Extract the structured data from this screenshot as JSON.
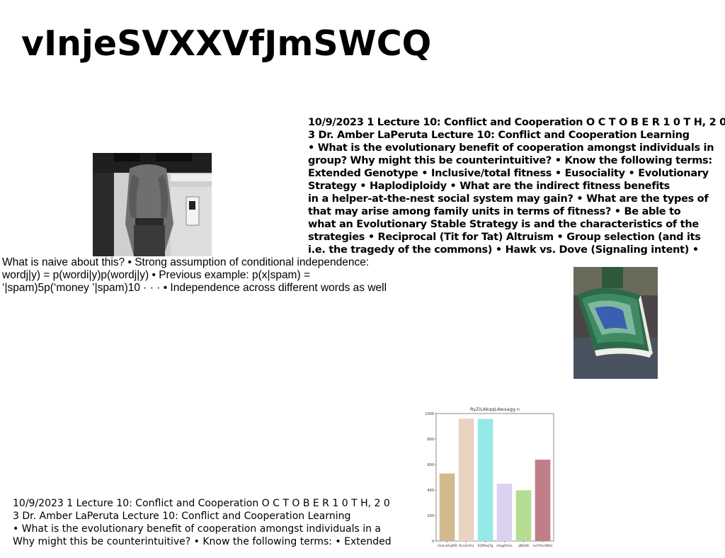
{
  "page": {
    "title": "vInjeSVXXVfJmSWCQ"
  },
  "images": {
    "man": {
      "description_icon": "photo-icon"
    },
    "book": {
      "description_icon": "photo-icon"
    }
  },
  "text_bold": {
    "lines": [
      "10/9/2023 1 Lecture 10: Conflict and Cooperation O C T O B E R 1 0 T H, 2 0",
      "3 Dr. Amber LaPeruta Lecture 10: Conflict and Cooperation Learning",
      "• What is the evolutionary benefit of cooperation amongst individuals in",
      "group? Why might this be counterintuitive? • Know the following terms:",
      "Extended Genotype • Inclusive/total fitness • Eusociality • Evolutionary",
      "Strategy • Haplodiploidy • What are the indirect fitness benefits",
      "in a helper-at-the-nest social system may gain? • What are the types of",
      "that may arise among family units in terms of fitness? • Be able to",
      "what an Evolutionary Stable Strategy is and the characteristics of the",
      "strategies • Reciprocal (Tit for Tat) Altruism • Group selection (and its",
      "i.e. the tragedy of the commons) • Hawk vs. Dove (Signaling intent) •"
    ]
  },
  "text_naive": {
    "lines": [
      "What is naive about this? • Strong assumption of conditional independence:",
      "wordj|y) = p(wordi|y)p(wordj|y) • Previous example: p(x|spam) =",
      "‘|spam)5p(‘money ’|spam)10 · · · • Independence across different words as well"
    ]
  },
  "text_lower": {
    "lines": [
      "10/9/2023 1 Lecture 10: Conflict and Cooperation O C T O B E R 1 0 T H, 2 0",
      "3 Dr. Amber LaPeruta Lecture 10: Conflict and Cooperation Learning",
      "• What is the evolutionary benefit of cooperation amongst individuals in a",
      "Why might this be counterintuitive? • Know the following terms: • Extended"
    ]
  },
  "chart_data": {
    "type": "bar",
    "title": "RyZiLAkqqLAwxagg n",
    "categories": [
      "rGeLiaGqRB",
      "OcuGvHo",
      "EQMaqTg",
      "cfogjPsIvL",
      "qWjXB",
      "axYhEvWbU"
    ],
    "values": [
      530,
      960,
      958,
      450,
      398,
      638
    ],
    "colors": [
      "#d4b98e",
      "#ead3c0",
      "#96e9e9",
      "#dcd2f0",
      "#b6dc94",
      "#c07e88"
    ],
    "ylim": [
      0,
      1000
    ],
    "yticks": [
      0,
      200,
      400,
      600,
      800,
      1000
    ],
    "xlabel": "",
    "ylabel": ""
  }
}
